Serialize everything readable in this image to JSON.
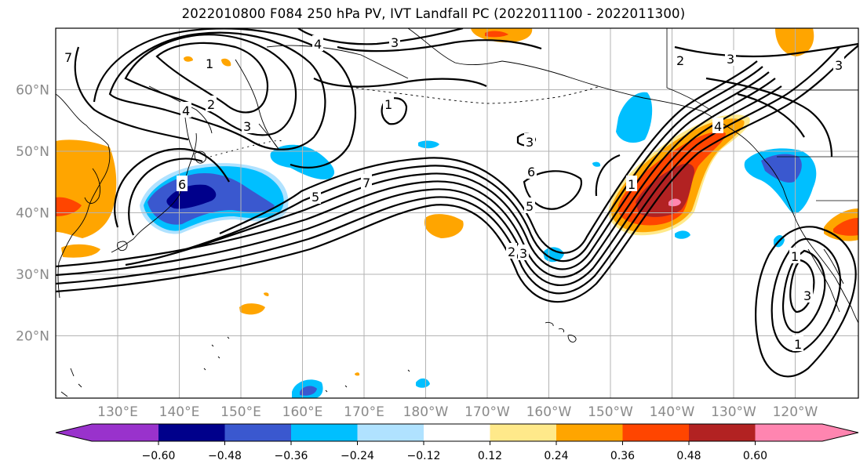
{
  "title": "2022010800 F084 250 hPa PV, IVT Landfall PC (2022011100 - 2022011300)",
  "lat_labels": [
    "60°N",
    "50°N",
    "40°N",
    "30°N",
    "20°N"
  ],
  "lon_labels": [
    "130°E",
    "140°E",
    "150°E",
    "160°E",
    "170°E",
    "180°W",
    "170°W",
    "160°W",
    "150°W",
    "140°W",
    "130°W",
    "120°W"
  ],
  "colorbar": {
    "tick_labels": [
      "−0.60",
      "−0.48",
      "−0.36",
      "−0.24",
      "−0.12",
      "0.12",
      "0.24",
      "0.36",
      "0.48",
      "0.60"
    ],
    "colors": [
      "#9932cc",
      "#00008b",
      "#3a58cf",
      "#00bfff",
      "#b0e2ff",
      "#ffffff",
      "#ffe98a",
      "#ffa500",
      "#ff4500",
      "#b22222",
      "#ff85b0"
    ]
  },
  "contour_labels": [
    "1",
    "2",
    "3",
    "4",
    "7",
    "1",
    "5",
    "6",
    "7",
    "6",
    "5",
    "2",
    "3",
    "1",
    "4",
    "4",
    "3",
    "3",
    "1",
    "3",
    "3",
    "1",
    "2",
    "3",
    "7",
    "1"
  ]
}
